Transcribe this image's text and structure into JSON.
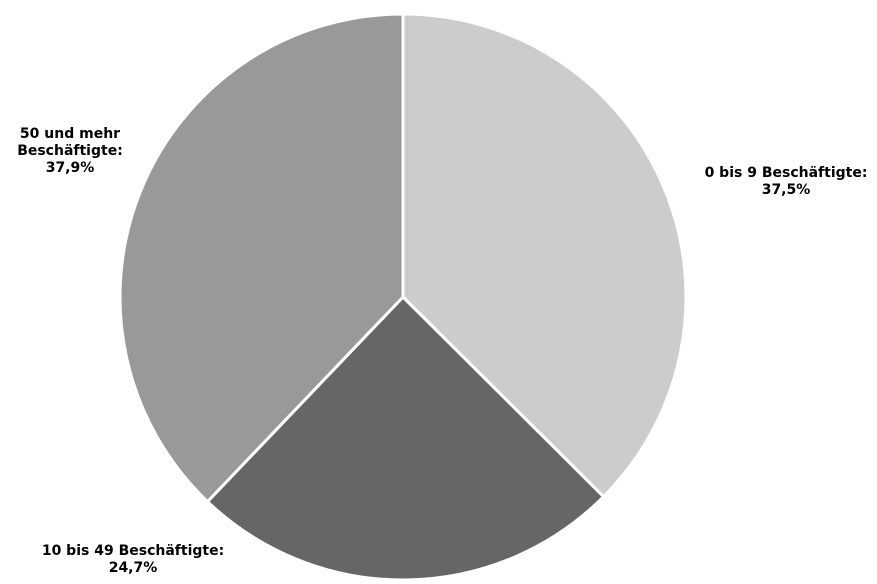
{
  "chart_data": {
    "type": "pie",
    "start_angle": "12 o'clock",
    "direction": "clockwise",
    "slices": [
      {
        "category": "0 bis 9 Beschäftigte",
        "value": 37.5,
        "label_lines": [
          "0 bis 9 Beschäftigte:",
          "37,5%"
        ],
        "color": "#cccccc"
      },
      {
        "category": "10 bis 49 Beschäftigte",
        "value": 24.7,
        "label_lines": [
          "10 bis 49 Beschäftigte:",
          "24,7%"
        ],
        "color": "#666666"
      },
      {
        "category": "50 und mehr Beschäftigte",
        "value": 37.9,
        "label_lines": [
          "50 und mehr",
          "Beschäftigte:",
          "37,9%"
        ],
        "color": "#999999"
      }
    ]
  }
}
